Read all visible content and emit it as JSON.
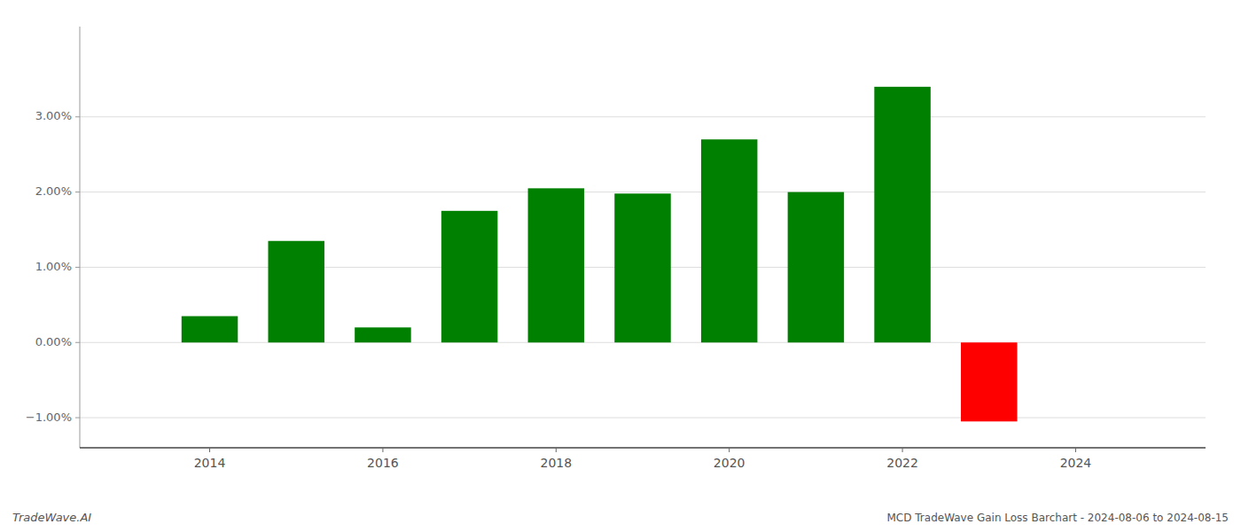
{
  "chart_data": {
    "type": "bar",
    "title": "MCD TradeWave Gain Loss Barchart - 2024-08-06 to 2024-08-15",
    "annotations": [
      "TradeWave.AI"
    ],
    "x": [
      2014,
      2015,
      2016,
      2017,
      2018,
      2019,
      2020,
      2021,
      2022,
      2023
    ],
    "values": [
      0.0035,
      0.0135,
      0.002,
      0.0175,
      0.0205,
      0.0198,
      0.027,
      0.02,
      0.034,
      -0.0105
    ],
    "colors": [
      "#008000",
      "#008000",
      "#008000",
      "#008000",
      "#008000",
      "#008000",
      "#008000",
      "#008000",
      "#008000",
      "#ff0000"
    ],
    "xlim": [
      2012.5,
      2025.5
    ],
    "xticks": [
      2014,
      2016,
      2018,
      2020,
      2022,
      2024
    ],
    "ylim": [
      -0.014,
      0.042
    ],
    "yticks": [
      {
        "value": -0.01,
        "label": "−1.00%"
      },
      {
        "value": 0.0,
        "label": "0.00%"
      },
      {
        "value": 0.01,
        "label": "1.00%"
      },
      {
        "value": 0.02,
        "label": "2.00%"
      },
      {
        "value": 0.03,
        "label": "3.00%"
      }
    ],
    "grid": true
  }
}
